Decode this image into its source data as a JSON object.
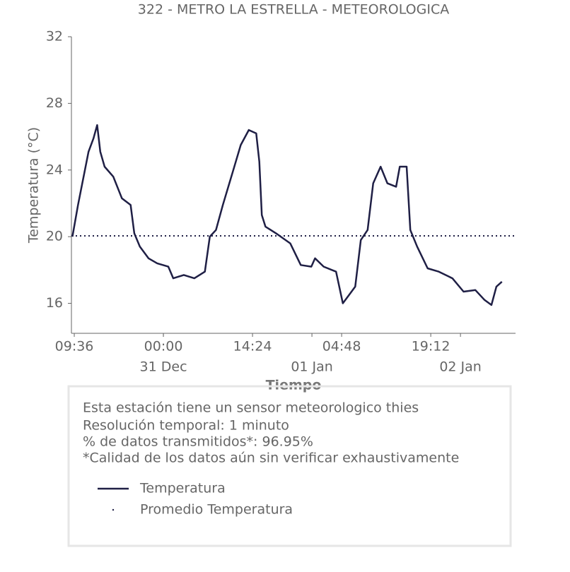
{
  "chart_data": {
    "type": "line",
    "title": "322 - METRO LA ESTRELLA - METEOROLOGICA",
    "xlabel": "Tiempo",
    "ylabel": "Temperatura (°C)",
    "x": [
      -14.7,
      -13.8,
      -12.9,
      -12.1,
      -11.3,
      -10.7,
      -10.2,
      -9.5,
      -8.1,
      -6.7,
      -5.3,
      -4.7,
      -3.8,
      -2.4,
      -1.0,
      0.8,
      1.6,
      3.3,
      5.0,
      6.7,
      7.5,
      8.5,
      9.6,
      11.3,
      12.5,
      13.8,
      15.0,
      15.5,
      15.9,
      16.5,
      18.2,
      20.5,
      22.2,
      23.9,
      24.5,
      25.9,
      27.9,
      29.0,
      30.2,
      31.0,
      31.9,
      33.0,
      33.9,
      35.1,
      36.2,
      37.6,
      38.2,
      39.3,
      39.9,
      41.0,
      42.7,
      44.5,
      46.7,
      48.5,
      50.4,
      51.9,
      53.0,
      53.8,
      54.7
    ],
    "series": [
      {
        "name": "Temperatura",
        "color": "#1f1f45",
        "values": [
          20.0,
          21.9,
          23.6,
          25.1,
          25.9,
          26.7,
          25.1,
          24.2,
          23.6,
          22.3,
          21.9,
          20.2,
          19.4,
          18.7,
          18.4,
          18.2,
          17.5,
          17.7,
          17.5,
          17.9,
          20.0,
          20.4,
          21.9,
          24.0,
          25.5,
          26.4,
          26.2,
          24.5,
          21.3,
          20.6,
          20.2,
          19.6,
          18.3,
          18.2,
          18.7,
          18.2,
          17.9,
          16.0,
          16.6,
          17.0,
          19.8,
          20.4,
          23.2,
          24.2,
          23.2,
          23.0,
          24.2,
          24.2,
          20.4,
          19.4,
          18.1,
          17.9,
          17.5,
          16.7,
          16.8,
          16.2,
          15.9,
          17.0,
          17.3
        ]
      }
    ],
    "mean_line": {
      "name": "Promedio Temperatura",
      "color": "#1f1f45",
      "value": 20.05
    },
    "xlim": [
      -14.86,
      56.9
    ],
    "xticks": [
      {
        "value": -14.4,
        "label": "09:36"
      },
      {
        "value": 0,
        "label": "00:00"
      },
      {
        "value": 14.4,
        "label": "14:24"
      },
      {
        "value": 28.8,
        "label": "04:48"
      },
      {
        "value": 43.2,
        "label": "19:12"
      }
    ],
    "xdayticks": [
      {
        "value": 0,
        "label": "31 Dec"
      },
      {
        "value": 24,
        "label": "01 Jan"
      },
      {
        "value": 48,
        "label": "02 Jan"
      }
    ],
    "ylim": [
      14.2,
      32
    ],
    "yticks": [
      16,
      20,
      24,
      28,
      32
    ],
    "grid": false
  },
  "info_box": {
    "lines": [
      "Esta estación tiene un sensor meteorologico thies",
      "Resolución temporal: 1 minuto",
      "% de datos transmitidos*: 96.95%",
      "*Calidad de los datos aún sin verificar exhaustivamente"
    ]
  }
}
